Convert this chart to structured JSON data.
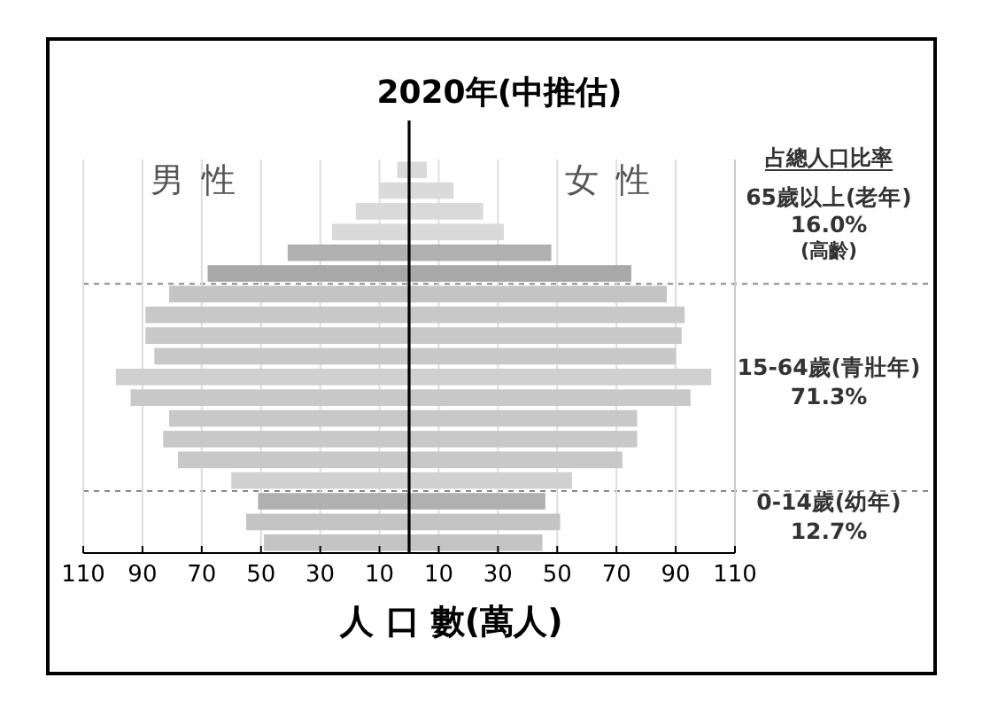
{
  "chart_data": {
    "type": "bar",
    "orientation": "horizontal",
    "title": "2020年(中推估)",
    "xlabel": "人 口 數(萬人)",
    "categories": [
      null,
      null,
      null,
      null,
      null,
      null,
      null,
      null,
      null,
      null,
      null,
      null,
      null,
      null,
      null,
      null,
      null,
      null,
      null
    ],
    "series": [
      {
        "name": "男性",
        "colors": [
          "#dadada",
          "#dadada",
          "#dadada",
          "#dadada",
          "#b0b0b0",
          "#a8a8a8",
          "#c4c4c4",
          "#c8c8c8",
          "#c8c8c8",
          "#c8c8c8",
          "#d0d0d0",
          "#c8c8c8",
          "#c8c8c8",
          "#c8c8c8",
          "#c8c8c8",
          "#d0d0d0",
          "#b0b0b0",
          "#c4c4c4",
          "#c4c4c4"
        ],
        "values": [
          -4,
          -10,
          -18,
          -26,
          -41,
          -68,
          -81,
          -89,
          -89,
          -86,
          -99,
          -94,
          -81,
          -83,
          -78,
          -60,
          -51,
          -55,
          -49
        ]
      },
      {
        "name": "女性",
        "colors": [
          "#dadada",
          "#dadada",
          "#dadada",
          "#dadada",
          "#b0b0b0",
          "#a8a8a8",
          "#c4c4c4",
          "#c8c8c8",
          "#c8c8c8",
          "#c8c8c8",
          "#d0d0d0",
          "#c8c8c8",
          "#c8c8c8",
          "#c8c8c8",
          "#c8c8c8",
          "#d0d0d0",
          "#b0b0b0",
          "#c4c4c4",
          "#c4c4c4"
        ],
        "values": [
          6,
          15,
          25,
          32,
          48,
          75,
          87,
          93,
          92,
          90,
          102,
          95,
          77,
          77,
          72,
          55,
          46,
          51,
          45
        ]
      }
    ],
    "stacked": true,
    "xlim": [
      -110,
      110
    ],
    "xticks": [
      {
        "value": -110,
        "label": "110"
      },
      {
        "value": -90,
        "label": "90"
      },
      {
        "value": -70,
        "label": "70"
      },
      {
        "value": -50,
        "label": "50"
      },
      {
        "value": -30,
        "label": "30"
      },
      {
        "value": -10,
        "label": "10"
      },
      10,
      30,
      50,
      70,
      90,
      110
    ],
    "grid": "x",
    "ref_lines": [
      {
        "axis": "x",
        "value": 0,
        "color": "#000000",
        "line_style": "solid"
      }
    ],
    "annotations": [
      "占總人口比率",
      "65歲以上(老年)",
      "16.0%",
      "(高齡)",
      "15-64歲(青壯年)",
      "71.3%",
      "0-14歲(幼年)",
      "12.7%"
    ]
  }
}
